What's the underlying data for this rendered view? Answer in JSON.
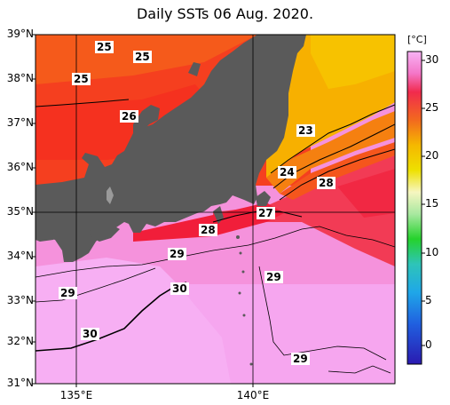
{
  "title": "Daily SSTs 06 Aug. 2020.",
  "lat_labels": [
    "39°N",
    "38°N",
    "37°N",
    "36°N",
    "35°N",
    "34°N",
    "33°N",
    "32°N",
    "31°N"
  ],
  "lon_labels": [
    "135°E",
    "140°E"
  ],
  "colorbar": {
    "unit": "[°C]",
    "ticks": [
      "30",
      "25",
      "20",
      "15",
      "10",
      "5",
      "0"
    ]
  },
  "contour_labels": [
    "25",
    "25",
    "25",
    "26",
    "23",
    "24",
    "28",
    "27",
    "28",
    "29",
    "29",
    "29",
    "30",
    "30",
    "29"
  ],
  "colors": {
    "land": "#5a5a5a",
    "sst_23": "#f7bb00",
    "sst_25": "#f5531d",
    "sst_27": "#f11e2f",
    "sst_28": "#f23a4c",
    "sst_29": "#f47fcf",
    "sst_30": "#f6a3f0"
  }
}
